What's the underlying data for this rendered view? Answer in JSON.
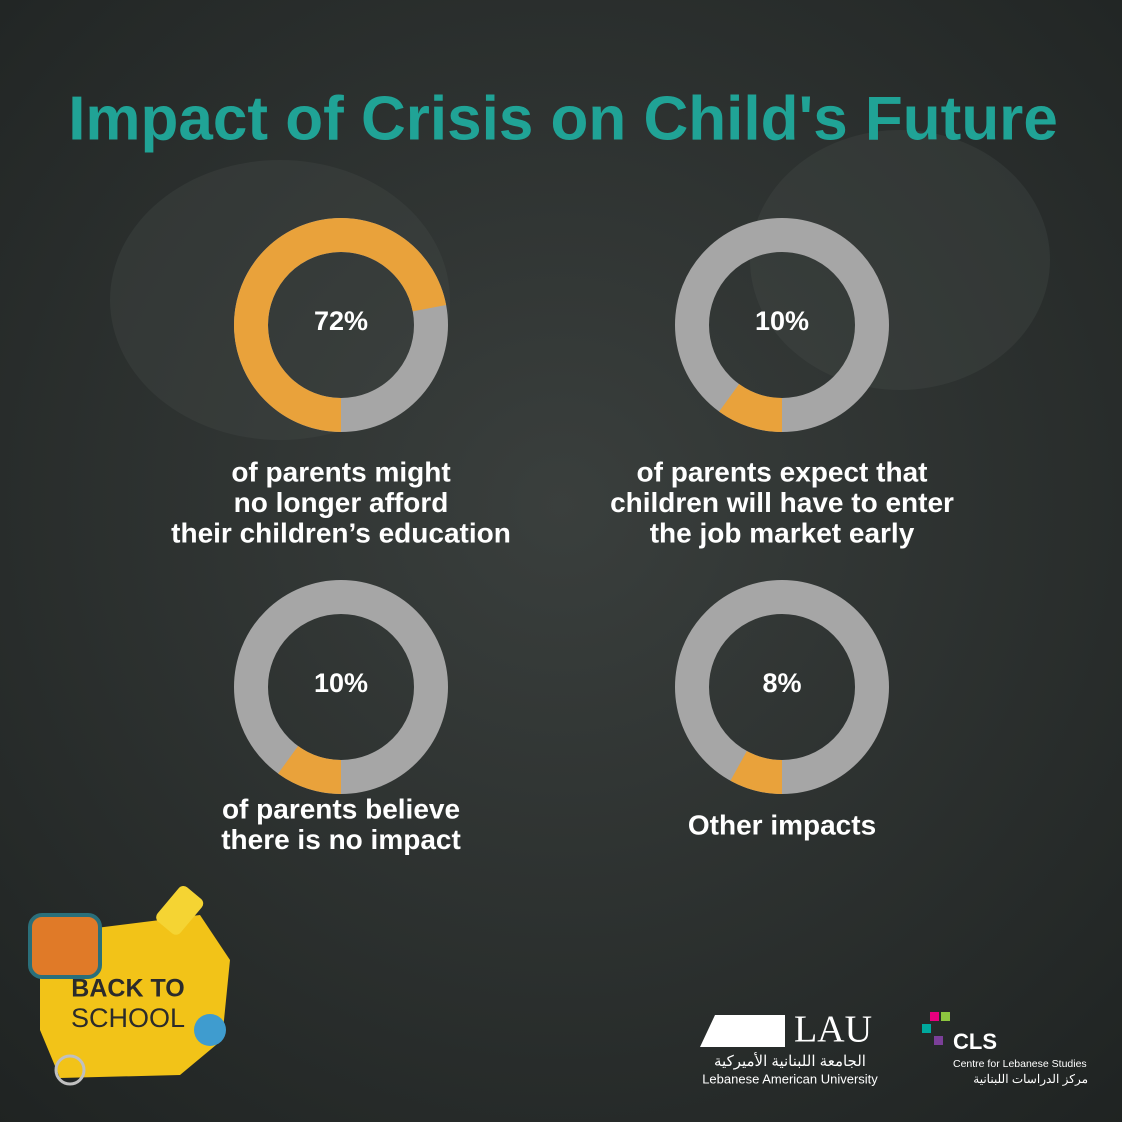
{
  "title": "Impact of Crisis on Child's Future",
  "chart_data": [
    {
      "type": "donut",
      "values": [
        72
      ],
      "value_labels": [
        "72%"
      ],
      "caption": [
        "of parents might",
        "no longer afford",
        "their children’s education"
      ],
      "color": "#e9a23b",
      "track_color": "#a6a6a6"
    },
    {
      "type": "donut",
      "values": [
        10
      ],
      "value_labels": [
        "10%"
      ],
      "caption": [
        "of parents expect that",
        "children will have to enter",
        "the job market early"
      ],
      "color": "#e9a23b",
      "track_color": "#a6a6a6"
    },
    {
      "type": "donut",
      "values": [
        10
      ],
      "value_labels": [
        "10%"
      ],
      "caption": [
        "of parents believe",
        "there is no impact"
      ],
      "color": "#e9a23b",
      "track_color": "#a6a6a6"
    },
    {
      "type": "donut",
      "values": [
        8
      ],
      "value_labels": [
        "8%"
      ],
      "caption": [
        "Other impacts"
      ],
      "color": "#e9a23b",
      "track_color": "#a6a6a6"
    }
  ],
  "badge": {
    "line1": "BACK TO",
    "line2": "SCHOOL"
  },
  "logos": {
    "lau": {
      "name": "LAU",
      "arabic": "الجامعة اللبنانية الأميركية",
      "english": "Lebanese American University"
    },
    "cls": {
      "name": "CLS",
      "english": "Centre for Lebanese Studies",
      "arabic": "مركز الدراسات اللبنانية"
    }
  }
}
